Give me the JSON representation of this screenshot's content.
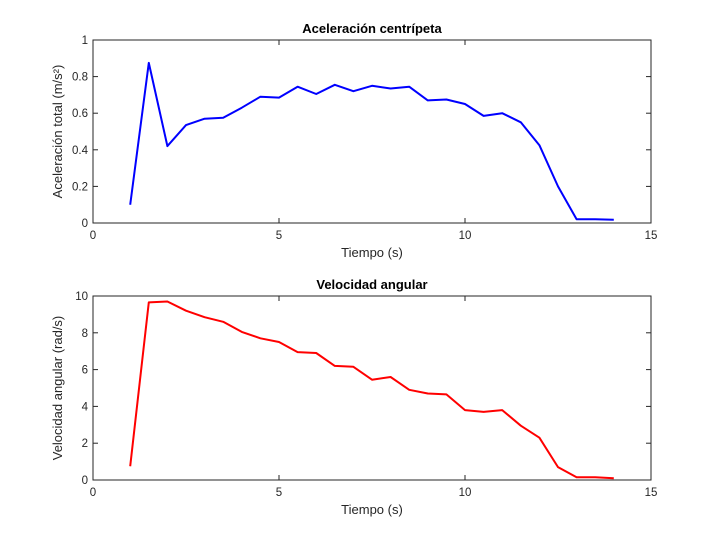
{
  "chart_data": [
    {
      "type": "line",
      "title": "Aceleración centrípeta",
      "xlabel": "Tiempo (s)",
      "ylabel": "Aceleración total (m/s²)",
      "xlim": [
        0,
        15
      ],
      "ylim": [
        0,
        1
      ],
      "xticks": [
        "0",
        "5",
        "10",
        "15"
      ],
      "yticks": [
        "0",
        "0.2",
        "0.4",
        "0.6",
        "0.8",
        "1"
      ],
      "grid": false,
      "series": [
        {
          "color": "#0000ff",
          "x": [
            1,
            1.5,
            2,
            2.5,
            3,
            3.5,
            4,
            4.5,
            5,
            5.5,
            6,
            6.5,
            7,
            7.5,
            8,
            8.5,
            9,
            9.5,
            10,
            10.5,
            11,
            11.5,
            12,
            12.5,
            13,
            13.5,
            14
          ],
          "y": [
            0.1,
            0.875,
            0.42,
            0.535,
            0.57,
            0.575,
            0.63,
            0.69,
            0.685,
            0.745,
            0.705,
            0.755,
            0.72,
            0.75,
            0.735,
            0.745,
            0.67,
            0.675,
            0.65,
            0.585,
            0.6,
            0.55,
            0.425,
            0.2,
            0.02,
            0.02,
            0.018
          ]
        }
      ]
    },
    {
      "type": "line",
      "title": "Velocidad angular",
      "xlabel": "Tiempo (s)",
      "ylabel": "Velocidad angular (rad/s)",
      "xlim": [
        0,
        15
      ],
      "ylim": [
        0,
        10
      ],
      "xticks": [
        "0",
        "5",
        "10",
        "15"
      ],
      "yticks": [
        "0",
        "2",
        "4",
        "6",
        "8",
        "10"
      ],
      "grid": false,
      "series": [
        {
          "color": "#ff0000",
          "x": [
            1,
            1.5,
            2,
            2.5,
            3,
            3.5,
            4,
            4.5,
            5,
            5.5,
            6,
            6.5,
            7,
            7.5,
            8,
            8.5,
            9,
            9.5,
            10,
            10.5,
            11,
            11.5,
            12,
            12.5,
            13,
            13.5,
            14
          ],
          "y": [
            0.75,
            9.65,
            9.7,
            9.2,
            8.85,
            8.6,
            8.05,
            7.7,
            7.5,
            6.95,
            6.9,
            6.2,
            6.15,
            5.45,
            5.6,
            4.9,
            4.7,
            4.65,
            3.8,
            3.7,
            3.8,
            2.95,
            2.3,
            0.7,
            0.15,
            0.15,
            0.1
          ]
        }
      ]
    }
  ]
}
